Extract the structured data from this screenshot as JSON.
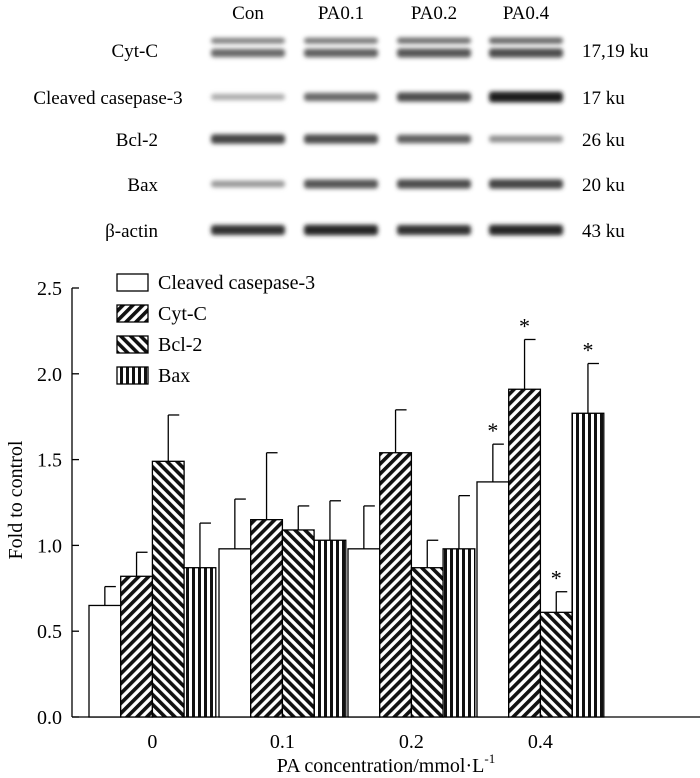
{
  "blot": {
    "lanes": [
      "Con",
      "PA0.1",
      "PA0.2",
      "PA0.4"
    ],
    "rows": [
      {
        "protein": "Cyt-C",
        "size": "17,19 ku",
        "intensity": [
          0.55,
          0.6,
          0.65,
          0.7
        ],
        "double": true
      },
      {
        "protein": "Cleaved casepase-3",
        "size": "17 ku",
        "intensity": [
          0.2,
          0.55,
          0.7,
          0.95
        ],
        "double": false
      },
      {
        "protein": "Bcl-2",
        "size": "26 ku",
        "intensity": [
          0.75,
          0.7,
          0.6,
          0.35
        ],
        "double": false
      },
      {
        "protein": "Bax",
        "size": "20 ku",
        "intensity": [
          0.3,
          0.65,
          0.7,
          0.75
        ],
        "double": false
      },
      {
        "protein": "β-actin",
        "size": "43 ku",
        "intensity": [
          0.85,
          0.9,
          0.85,
          0.9
        ],
        "double": false
      }
    ]
  },
  "chart_data": {
    "type": "bar",
    "categories": [
      "0",
      "0.1",
      "0.2",
      "0.4"
    ],
    "xlabel": "PA concentration/mmol·L",
    "xlabel_superscript": "-1",
    "ylabel": "Fold to control",
    "ylim": [
      0,
      2.5
    ],
    "yticks": [
      "0.0",
      "0.5",
      "1.0",
      "1.5",
      "2.0",
      "2.5"
    ],
    "legend_position": "top-left",
    "series": [
      {
        "name": "Cleaved casepase-3",
        "pattern": "white",
        "values": [
          0.65,
          0.98,
          0.98,
          1.37
        ],
        "errors": [
          0.11,
          0.29,
          0.25,
          0.22
        ],
        "significant": [
          false,
          false,
          false,
          true
        ]
      },
      {
        "name": "Cyt-C",
        "pattern": "diag-right",
        "values": [
          0.82,
          1.15,
          1.54,
          1.91
        ],
        "errors": [
          0.14,
          0.39,
          0.25,
          0.29
        ],
        "significant": [
          false,
          false,
          false,
          true
        ]
      },
      {
        "name": "Bcl-2",
        "pattern": "diag-left",
        "values": [
          1.49,
          1.09,
          0.87,
          0.61
        ],
        "errors": [
          0.27,
          0.14,
          0.16,
          0.12
        ],
        "significant": [
          false,
          false,
          false,
          true
        ]
      },
      {
        "name": "Bax",
        "pattern": "vertical",
        "values": [
          0.87,
          1.03,
          0.98,
          1.77
        ],
        "errors": [
          0.26,
          0.23,
          0.31,
          0.29
        ],
        "significant": [
          false,
          false,
          false,
          true
        ]
      }
    ],
    "significance_marker": "*"
  }
}
